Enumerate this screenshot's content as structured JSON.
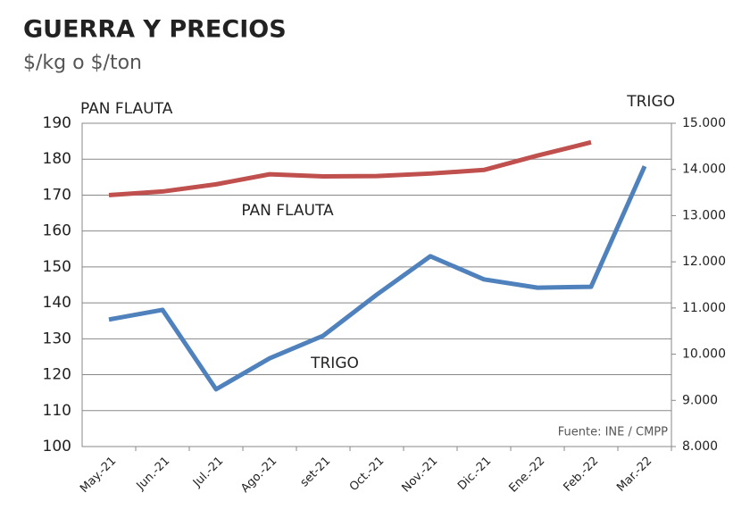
{
  "chart_data": {
    "type": "line",
    "title": "GUERRA Y PRECIOS",
    "subtitle": "$/kg o $/ton",
    "y_label": "PAN FLAUTA",
    "y2_label": "TRIGO",
    "source": "Fuente: INE / CMPP",
    "categories": [
      "May.-21",
      "Jun.-21",
      "Jul.-21",
      "Ago.-21",
      "set-21",
      "Oct.-21",
      "Nov.-21",
      "Dic.-21",
      "Ene.-22",
      "Feb.-22",
      "Mar.-22"
    ],
    "series": [
      {
        "name": "PAN FLAUTA",
        "color": "#c0504d",
        "values": [
          170,
          171,
          173,
          175.8,
          175.2,
          175.3,
          176,
          177,
          181,
          184.7,
          null
        ]
      },
      {
        "name": "TRIGO",
        "color": "#4f81bd",
        "axis": "y2",
        "values": [
          10750,
          10960,
          9240,
          9910,
          10400,
          11290,
          12120,
          11620,
          11440,
          11460,
          14070
        ]
      }
    ],
    "ylim": [
      100,
      190
    ],
    "yticks": [
      100,
      110,
      120,
      130,
      140,
      150,
      160,
      170,
      180,
      190
    ],
    "y2lim": [
      8000,
      15000
    ],
    "y2ticks": [
      {
        "value": 8000,
        "label": "8.000"
      },
      {
        "value": 9000,
        "label": "9.000"
      },
      {
        "value": 10000,
        "label": "10.000"
      },
      {
        "value": 11000,
        "label": "11.000"
      },
      {
        "value": 12000,
        "label": "12.000"
      },
      {
        "value": 13000,
        "label": "13.000"
      },
      {
        "value": 14000,
        "label": "14.000"
      },
      {
        "value": 15000,
        "label": "15.000"
      }
    ],
    "grid": true
  }
}
